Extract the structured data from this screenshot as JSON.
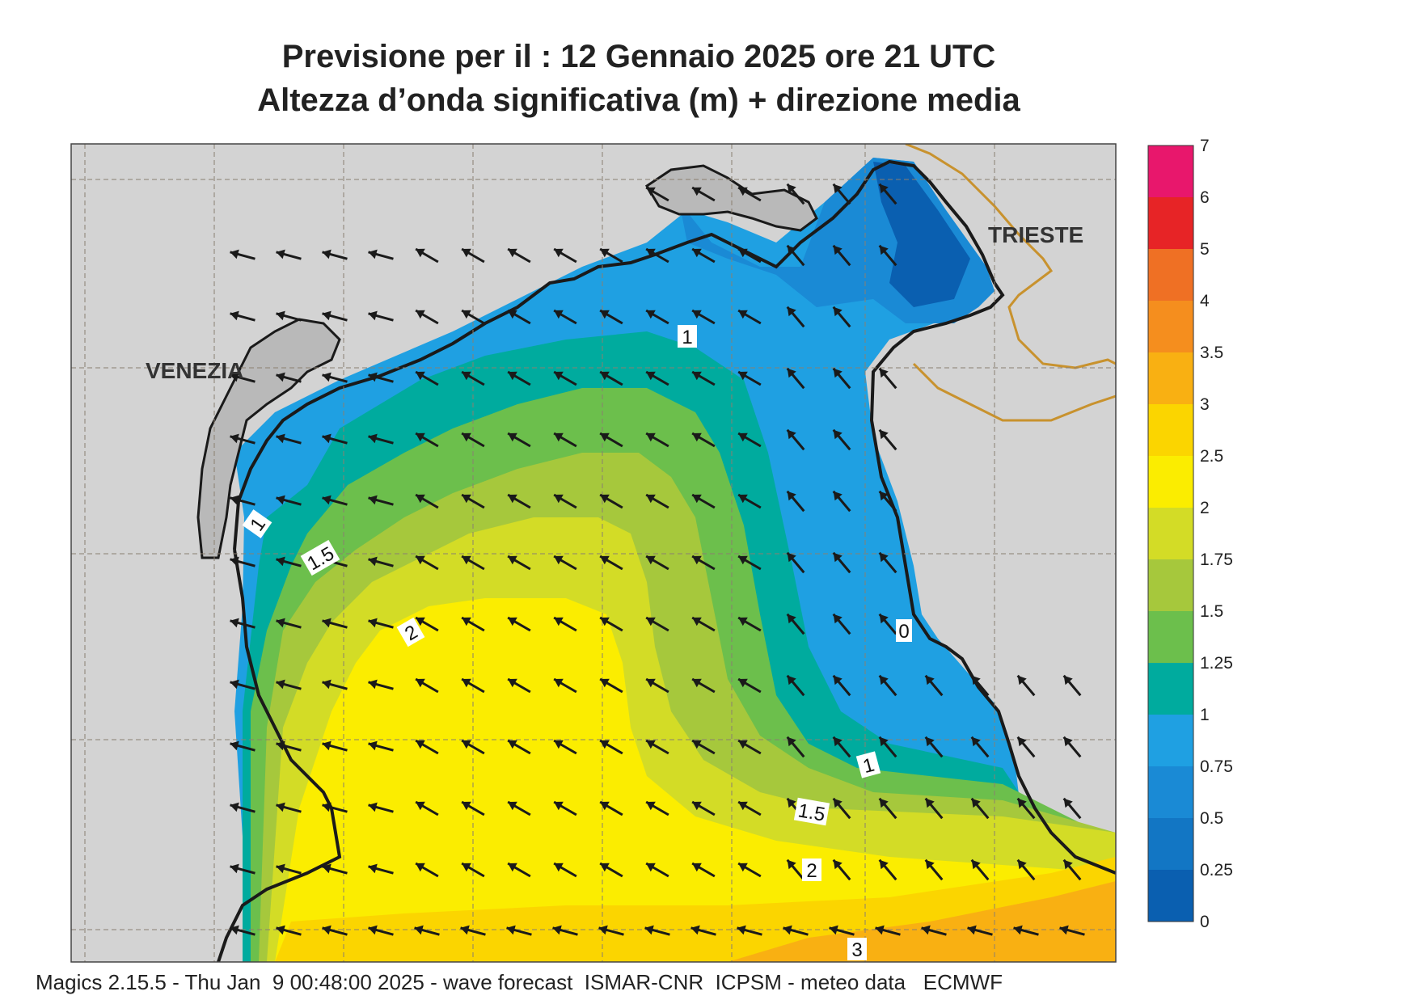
{
  "header": {
    "title_line1": "Previsione per il  :  12  Gennaio  2025   ore 21 UTC",
    "title_line2": "Altezza d’onda significativa (m) + direzione media"
  },
  "map": {
    "cities": [
      "VENEZIA",
      "TRIESTE"
    ],
    "contour_labels": [
      "1",
      "1",
      "1.5",
      "2",
      "0",
      "1",
      "1.5",
      "2",
      "3"
    ],
    "land_color": "#d3d3d3",
    "coast_color": "#1a1a1a",
    "border_color": "#c8922e",
    "grid_color": "#8a7f70",
    "arrow_color": "#1a1a1a"
  },
  "legend": {
    "labels": [
      "0",
      "0.25",
      "0.5",
      "0.75",
      "1",
      "1.25",
      "1.5",
      "1.75",
      "2",
      "2.5",
      "3",
      "3.5",
      "4",
      "5",
      "6",
      "7"
    ],
    "colors": [
      "#0a5fb0",
      "#1276c4",
      "#1a8ad5",
      "#1fa0e2",
      "#00ab9e",
      "#6cbf4c",
      "#a6c83c",
      "#d3dc26",
      "#fbed00",
      "#fbd500",
      "#f9b012",
      "#f58e1e",
      "#ef7024",
      "#e72426",
      "#e8176c"
    ]
  },
  "footer": {
    "text": "Magics 2.15.5 - Thu Jan  9 00:48:00 2025 - wave forecast  ISMAR-CNR  ICPSM - meteo data   ECMWF"
  }
}
